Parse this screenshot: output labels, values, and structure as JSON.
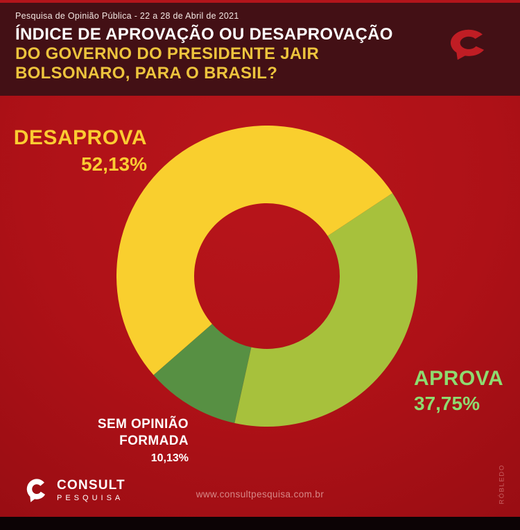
{
  "header": {
    "subtitle": "Pesquisa de Opinião Pública - 22 a 28 de Abril de 2021",
    "title_line1": "ÍNDICE DE APROVAÇÃO OU DESAPROVAÇÃO",
    "title_line2": "DO GOVERNO DO PRESIDENTE JAIR",
    "title_line3": "BOLSONARO, PARA O BRASIL?"
  },
  "chart_data": {
    "type": "pie",
    "donut": true,
    "title": "Índice de aprovação ou desaprovação do governo do presidente Jair Bolsonaro, para o Brasil?",
    "labels": [
      "DESAPROVA",
      "APROVA",
      "SEM OPINIÃO FORMADA"
    ],
    "values": [
      52.13,
      37.75,
      10.13
    ],
    "display_values": [
      "52,13%",
      "37,75%",
      "10,13%"
    ],
    "colors": [
      "#f9cf2e",
      "#a7c13c",
      "#579043"
    ],
    "label_colors": [
      "#fbcc32",
      "#8edb70",
      "#ffffff"
    ],
    "start_angle_deg": 228.9,
    "outer_radius": 217,
    "inner_radius": 105,
    "legend": "none",
    "background": "#ae1117"
  },
  "slice_labels": {
    "desaprova": {
      "name": "DESAPROVA",
      "value": "52,13%"
    },
    "aprova": {
      "name": "APROVA",
      "value": "37,75%"
    },
    "sem_opiniao": {
      "line1": "SEM OPINIÃO",
      "line2": "FORMADA",
      "value": "10,13%"
    }
  },
  "footer": {
    "brand_name": "CONSULT",
    "brand_sub": "PESQUISA",
    "website": "www.consultpesquisa.com.br",
    "credit": "RÓBLEDO"
  },
  "colors": {
    "header_maroon": "#431015",
    "top_strip_red": "#b2151b",
    "chart_background_red": "#ae1117",
    "title_yellow": "#edc43d",
    "logo_red": "#c01d24",
    "logo_white": "#ffffff",
    "bottom_bar_black": "#0c0305"
  }
}
